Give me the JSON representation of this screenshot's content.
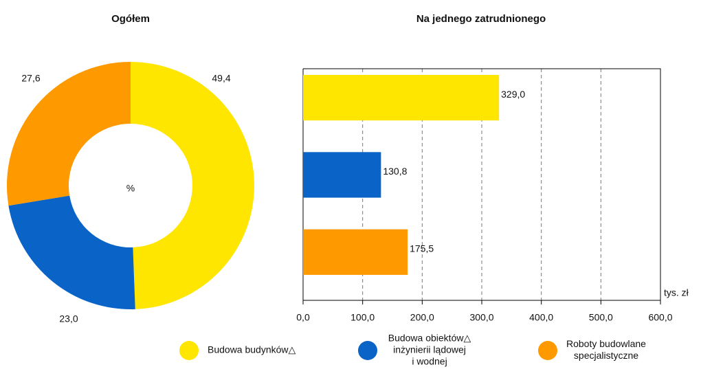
{
  "chart_data": [
    {
      "type": "donut",
      "title": "Ogółem",
      "center_label": "%",
      "values": [
        49.4,
        23.0,
        27.6
      ],
      "value_labels": [
        "49,4",
        "23,0",
        "27,6"
      ],
      "colors": [
        "#ffe600",
        "#0a64c8",
        "#ff9900"
      ]
    },
    {
      "type": "hbar",
      "title": "Na jednego zatrudnionego",
      "categories": [
        null,
        null,
        null
      ],
      "values": [
        329.0,
        130.8,
        175.5
      ],
      "value_labels": [
        "329,0",
        "130,8",
        "175,5"
      ],
      "colors": [
        "#ffe600",
        "#0a64c8",
        "#ff9900"
      ],
      "xlim": [
        0,
        600
      ],
      "xticks": [
        {
          "value": 0,
          "label": "0,0"
        },
        {
          "value": 100,
          "label": "100,0"
        },
        {
          "value": 200,
          "label": "200,0"
        },
        {
          "value": 300,
          "label": "300,0"
        },
        {
          "value": 400,
          "label": "400,0"
        },
        {
          "value": 500,
          "label": "500,0"
        },
        {
          "value": 600,
          "label": "600,0"
        }
      ],
      "xlabel": "tys. zł",
      "grid": true
    }
  ],
  "legend": [
    {
      "lines": [
        "Budowa budynków△"
      ],
      "color": "#ffe600"
    },
    {
      "lines": [
        "Budowa obiektów△",
        "inżynierii lądowej",
        "i wodnej"
      ],
      "color": "#0a64c8"
    },
    {
      "lines": [
        "Roboty budowlane",
        "specjalistyczne"
      ],
      "color": "#ff9900"
    }
  ]
}
